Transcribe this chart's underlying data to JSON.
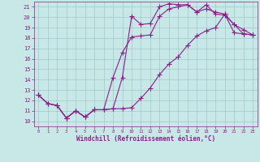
{
  "xlabel": "Windchill (Refroidissement éolien,°C)",
  "xlim": [
    -0.5,
    23.5
  ],
  "ylim": [
    9.5,
    21.5
  ],
  "xticks": [
    0,
    1,
    2,
    3,
    4,
    5,
    6,
    7,
    8,
    9,
    10,
    11,
    12,
    13,
    14,
    15,
    16,
    17,
    18,
    19,
    20,
    21,
    22,
    23
  ],
  "yticks": [
    10,
    11,
    12,
    13,
    14,
    15,
    16,
    17,
    18,
    19,
    20,
    21
  ],
  "bg_color": "#c8e8e8",
  "line_color": "#882288",
  "grid_color": "#a0c8c8",
  "line1_x": [
    0,
    1,
    2,
    3,
    4,
    5,
    6,
    7,
    8,
    9,
    10,
    11,
    12,
    13,
    14,
    15,
    16,
    17,
    18,
    19,
    20,
    21,
    22,
    23
  ],
  "line1_y": [
    12.5,
    11.7,
    11.5,
    10.3,
    11.0,
    10.4,
    11.1,
    11.1,
    11.2,
    11.2,
    11.3,
    12.2,
    13.2,
    14.5,
    15.5,
    16.2,
    17.3,
    18.2,
    18.7,
    19.0,
    20.3,
    18.5,
    18.4,
    18.3
  ],
  "line2_x": [
    0,
    1,
    2,
    3,
    4,
    5,
    6,
    7,
    8,
    9,
    10,
    11,
    12,
    13,
    14,
    15,
    16,
    17,
    18,
    19,
    20,
    21,
    22,
    23
  ],
  "line2_y": [
    12.5,
    11.7,
    11.5,
    10.3,
    11.0,
    10.4,
    11.1,
    11.1,
    14.2,
    16.6,
    18.1,
    18.2,
    18.3,
    20.1,
    20.8,
    21.0,
    21.2,
    20.5,
    20.8,
    20.5,
    20.3,
    19.3,
    18.8,
    18.3
  ],
  "line3_x": [
    0,
    1,
    2,
    3,
    4,
    5,
    6,
    7,
    8,
    9,
    10,
    11,
    12,
    13,
    14,
    15,
    16,
    17,
    18,
    19,
    20,
    21,
    22,
    23
  ],
  "line3_y": [
    12.5,
    11.7,
    11.5,
    10.3,
    11.0,
    10.4,
    11.1,
    11.1,
    11.2,
    14.2,
    20.1,
    19.3,
    19.4,
    21.0,
    21.3,
    21.2,
    21.2,
    20.5,
    21.2,
    20.3,
    20.2,
    19.3,
    18.4,
    18.3
  ]
}
